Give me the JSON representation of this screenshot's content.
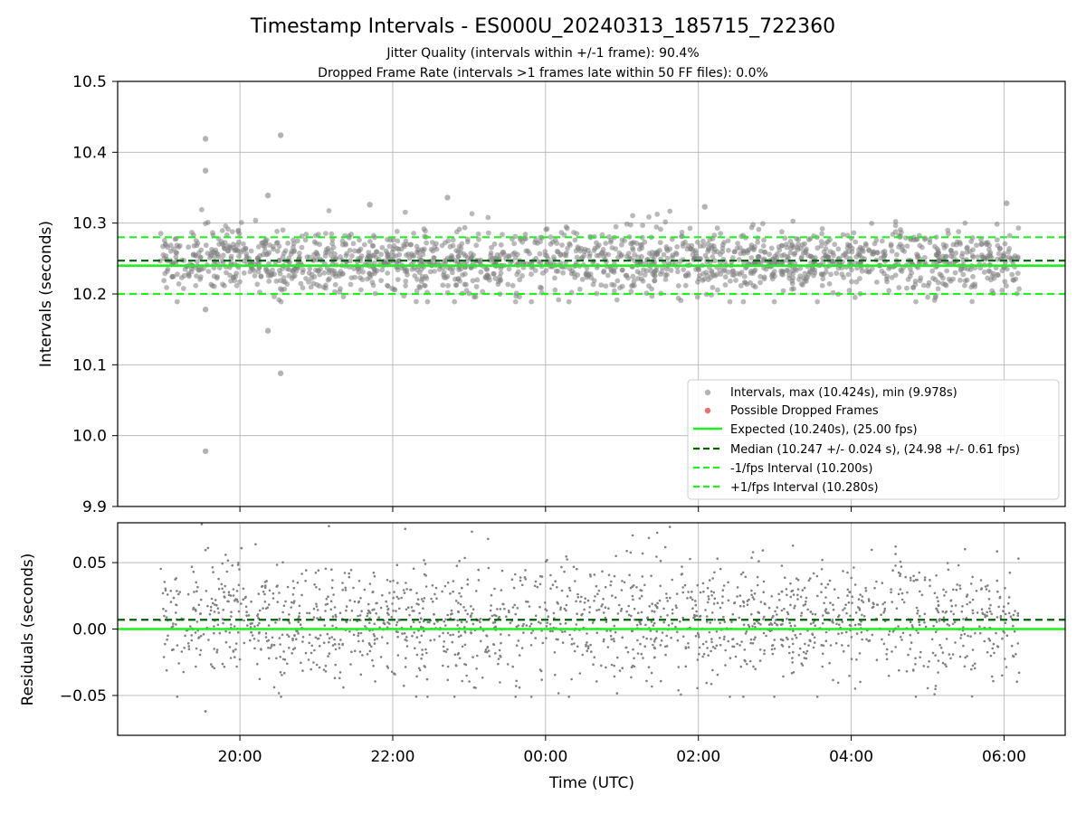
{
  "chart_data": [
    {
      "type": "scatter",
      "title": "Timestamp Intervals - ES000U_20240313_185715_722360",
      "subtitle": "Jitter Quality (intervals within +/-1 frame): 90.4%",
      "subtitle2": "Dropped Frame Rate (intervals >1 frames late within 50 FF files): 0.0%",
      "ylabel": "Intervals (seconds)",
      "ylim": [
        9.9,
        10.5
      ],
      "yticks": [
        "9.9",
        "10.0",
        "10.1",
        "10.2",
        "10.3",
        "10.4",
        "10.5"
      ],
      "xlim_hours_utc": [
        18.4,
        30.8
      ],
      "x_start": "2024-03-13 18:57 UTC",
      "x_end": "2024-03-14 06:12 UTC",
      "grid": true,
      "legend_position": "lower right",
      "legend": [
        "Intervals, max (10.424s), min (9.978s)",
        "Possible Dropped Frames",
        "Expected (10.240s), (25.00 fps)",
        "Median (10.247 +/- 0.024 s), (24.98 +/- 0.61 fps)",
        "-1/fps Interval (10.200s)",
        "+1/fps Interval (10.280s)"
      ],
      "expected": 10.24,
      "median": 10.247,
      "minus_interval": 10.2,
      "plus_interval": 10.28,
      "series": [
        {
          "name": "Intervals, max (10.424s), min (9.978s)",
          "approx_count": 3900,
          "distribution": "clustered around median 10.247 s, std 0.024 s, mostly within 10.195–10.295 s",
          "notable_points": [
            {
              "x": "19:33",
              "y": 10.419
            },
            {
              "x": "19:33",
              "y": 10.374
            },
            {
              "x": "19:33",
              "y": 9.978
            },
            {
              "x": "19:33",
              "y": 10.178
            },
            {
              "x": "20:32",
              "y": 10.424
            },
            {
              "x": "20:32",
              "y": 10.088
            },
            {
              "x": "20:22",
              "y": 10.148
            },
            {
              "x": "20:22",
              "y": 10.339
            },
            {
              "x": "21:42",
              "y": 10.326
            },
            {
              "x": "22:43",
              "y": 10.336
            },
            {
              "x": "06:02",
              "y": 10.328
            },
            {
              "x": "02:05",
              "y": 10.323
            }
          ]
        },
        {
          "name": "Possible Dropped Frames",
          "values": []
        }
      ],
      "colors": {
        "points": "#808080",
        "dropped": "#e86060",
        "expected": "#22ee22",
        "median": "#006400",
        "interval": "#22ee22"
      }
    },
    {
      "type": "scatter",
      "ylabel": "Residuals (seconds)",
      "xlabel": "Time (UTC)",
      "ylim": [
        -0.08,
        0.08
      ],
      "yticks": [
        "−0.05",
        "0.00",
        "0.05"
      ],
      "xticks": [
        "20:00",
        "22:00",
        "00:00",
        "02:00",
        "04:00",
        "06:00"
      ],
      "grid": true,
      "median_residual": 0.007,
      "expected_residual": 0.0,
      "series": [
        {
          "name": "Residuals",
          "approx_count": 3900,
          "distribution": "residuals mostly within −0.06 to +0.08 s, centred near +0.007 s"
        }
      ]
    }
  ]
}
